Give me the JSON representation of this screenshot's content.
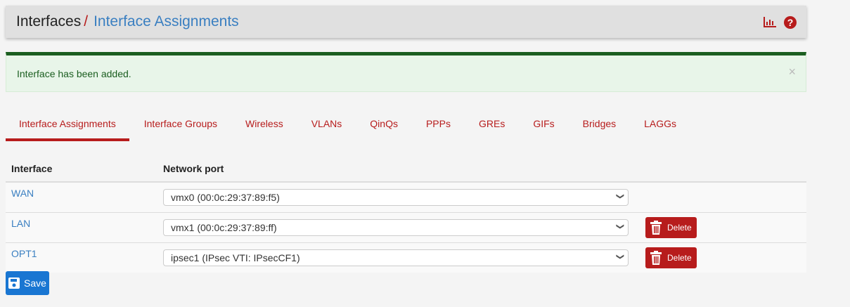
{
  "header": {
    "section": "Interfaces",
    "separator": "/",
    "current": "Interface Assignments",
    "icons": [
      "chart-bar-icon",
      "help-icon"
    ]
  },
  "alert": {
    "message": "Interface has been added.",
    "close": "×"
  },
  "tabs": [
    "Interface Assignments",
    "Interface Groups",
    "Wireless",
    "VLANs",
    "QinQs",
    "PPPs",
    "GREs",
    "GIFs",
    "Bridges",
    "LAGGs"
  ],
  "table": {
    "headers": [
      "Interface",
      "Network port"
    ],
    "rows": [
      {
        "interface": "WAN",
        "port": "vmx0 (00:0c:29:37:89:f5)",
        "delete": null
      },
      {
        "interface": "LAN",
        "port": "vmx1 (00:0c:29:37:89:ff)",
        "delete": "Delete"
      },
      {
        "interface": "OPT1",
        "port": "ipsec1 (IPsec VTI: IPsecCF1)",
        "delete": "Delete"
      }
    ]
  },
  "save_label": "Save",
  "colors": {
    "accent": "#b71c1c",
    "link": "#3a7fc1",
    "success": "#1b5e20",
    "primary": "#1976d2"
  }
}
